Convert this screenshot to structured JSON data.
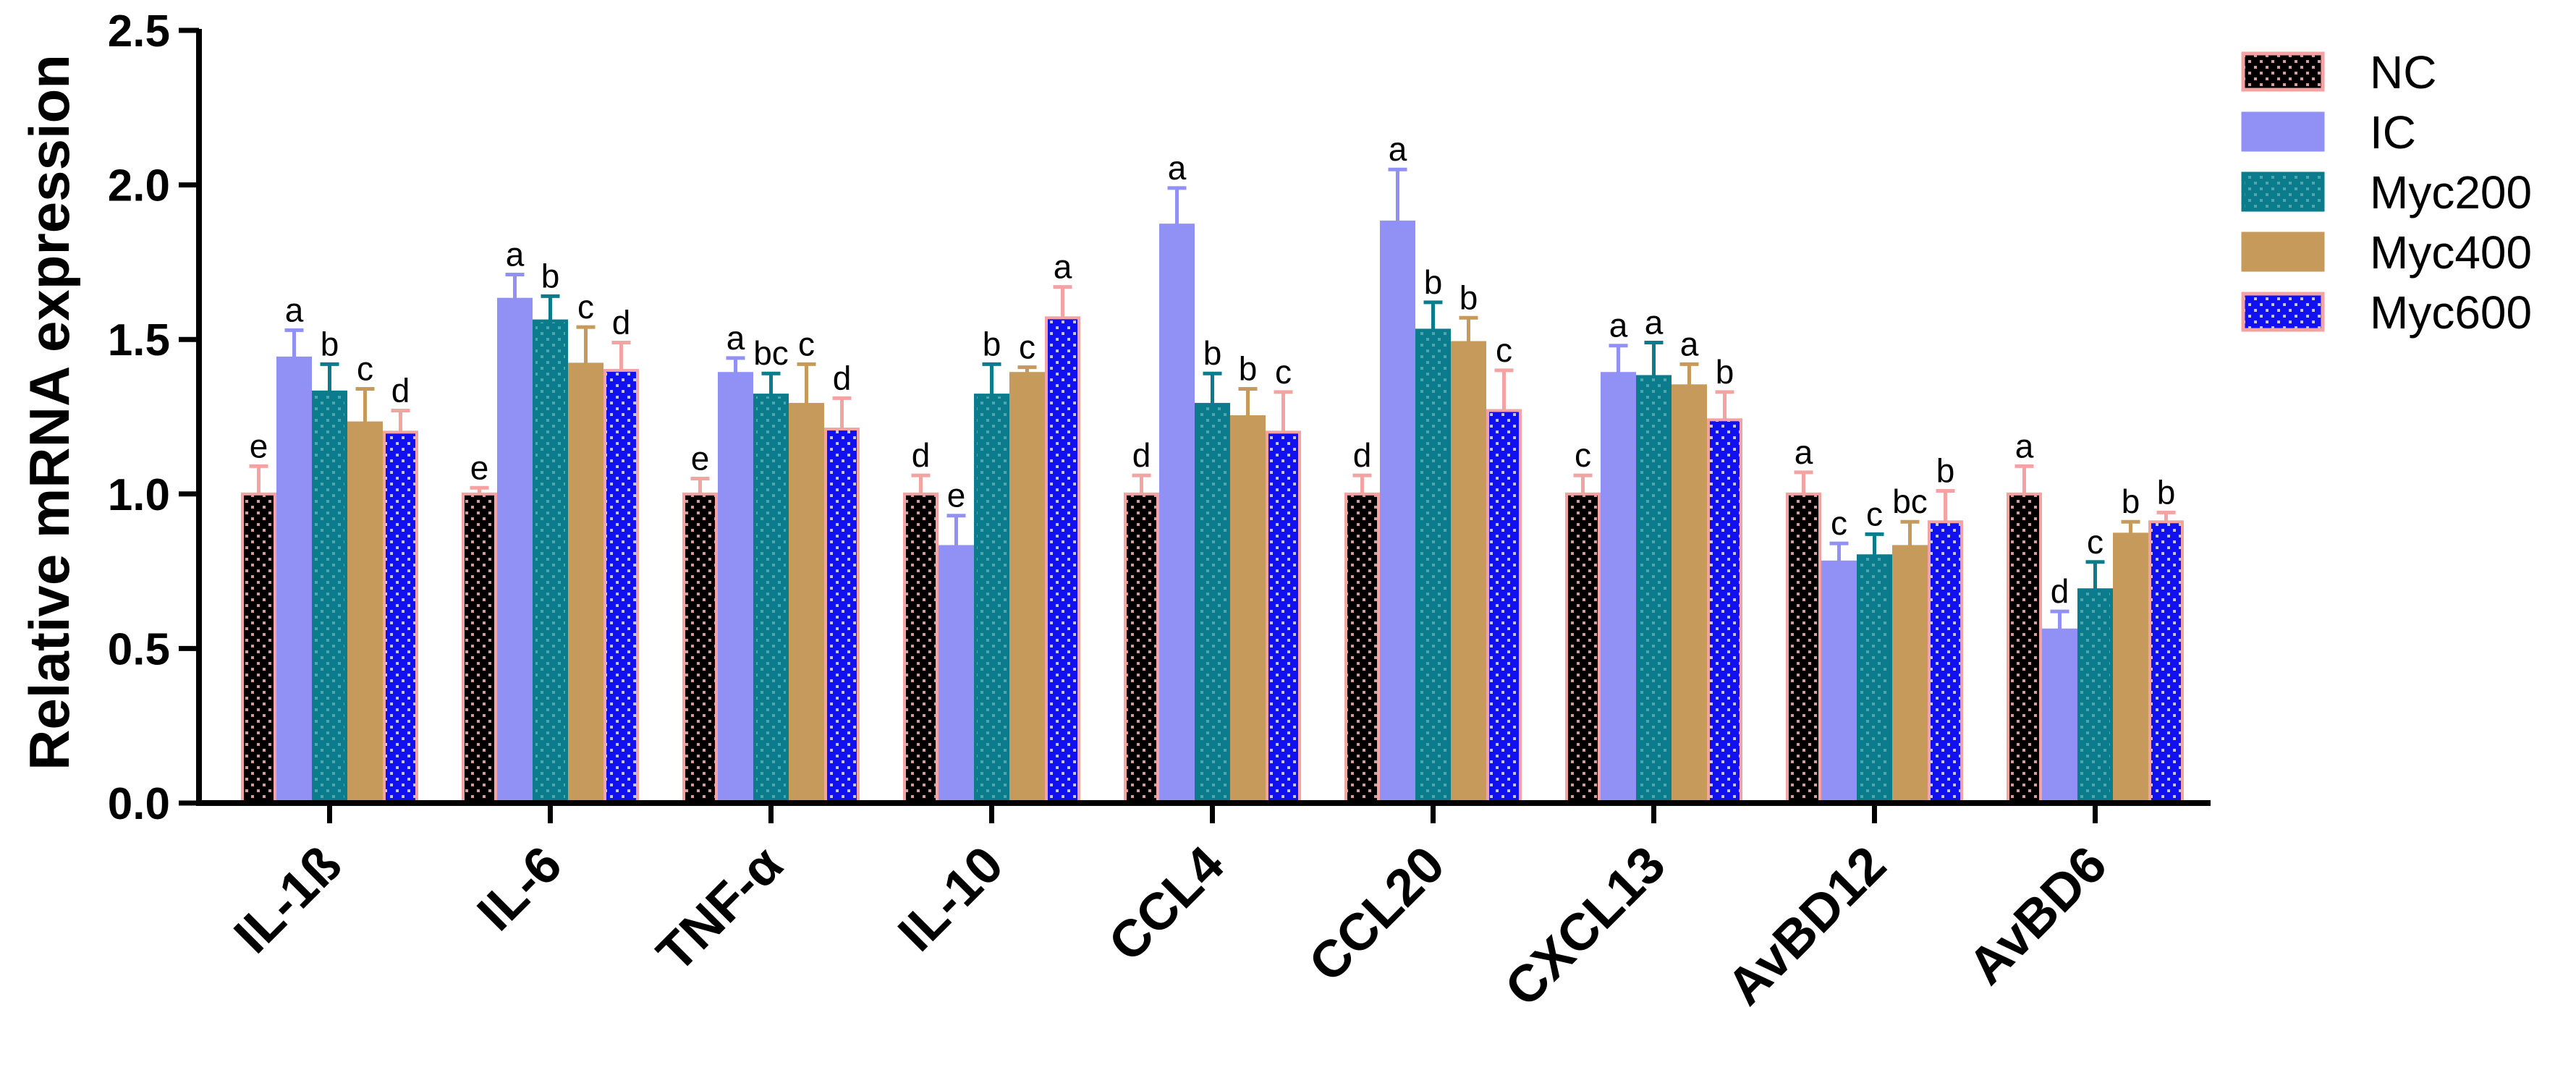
{
  "chart_data": {
    "type": "bar",
    "title": "",
    "xlabel": "",
    "ylabel": "Relative mRNA expression",
    "ylim": [
      0,
      2.5
    ],
    "yticks": [
      "0.0",
      "0.5",
      "1.0",
      "1.5",
      "2.0",
      "2.5"
    ],
    "categories": [
      "IL-1ß",
      "IL-6",
      "TNF-α",
      "IL-10",
      "CCL4",
      "CCL20",
      "CXCL13",
      "AvBD12",
      "AvBD6"
    ],
    "legend_position": "top-right",
    "series": [
      {
        "name": "NC",
        "color": "#000000",
        "border": "#f4a3a3",
        "dot": "#d99a9a",
        "values": [
          1.0,
          1.0,
          1.0,
          1.0,
          1.0,
          1.0,
          1.0,
          1.0,
          1.0
        ],
        "errors": [
          0.09,
          0.02,
          0.05,
          0.06,
          0.06,
          0.06,
          0.06,
          0.07,
          0.09
        ],
        "labels": [
          "e",
          "e",
          "e",
          "d",
          "d",
          "d",
          "c",
          "a",
          "a"
        ]
      },
      {
        "name": "IC",
        "color": "#9191f5",
        "border": "#9191f5",
        "dot": null,
        "values": [
          1.44,
          1.63,
          1.39,
          0.83,
          1.87,
          1.88,
          1.39,
          0.78,
          0.56
        ],
        "errors": [
          0.09,
          0.08,
          0.05,
          0.1,
          0.12,
          0.17,
          0.09,
          0.06,
          0.06
        ],
        "labels": [
          "a",
          "a",
          "a",
          "e",
          "a",
          "a",
          "a",
          "c",
          "d"
        ]
      },
      {
        "name": "Myc200",
        "color": "#0b7c8c",
        "border": "#0b7c8c",
        "dot": "#4fa6b0",
        "values": [
          1.33,
          1.56,
          1.32,
          1.32,
          1.29,
          1.53,
          1.38,
          0.8,
          0.69
        ],
        "errors": [
          0.09,
          0.08,
          0.07,
          0.1,
          0.1,
          0.09,
          0.11,
          0.07,
          0.09
        ],
        "labels": [
          "b",
          "b",
          "bc",
          "b",
          "b",
          "b",
          "a",
          "c",
          "c"
        ]
      },
      {
        "name": "Myc400",
        "color": "#c59a5a",
        "border": "#c59a5a",
        "dot": null,
        "values": [
          1.23,
          1.42,
          1.29,
          1.39,
          1.25,
          1.49,
          1.35,
          0.83,
          0.87
        ],
        "errors": [
          0.11,
          0.12,
          0.13,
          0.02,
          0.09,
          0.08,
          0.07,
          0.08,
          0.04
        ],
        "labels": [
          "c",
          "c",
          "c",
          "c",
          "b",
          "b",
          "a",
          "bc",
          "b"
        ]
      },
      {
        "name": "Myc600",
        "color": "#1010f0",
        "border": "#f4a3a3",
        "dot": "#c8c8ff",
        "values": [
          1.2,
          1.4,
          1.21,
          1.57,
          1.2,
          1.27,
          1.24,
          0.91,
          0.91
        ],
        "errors": [
          0.07,
          0.09,
          0.1,
          0.1,
          0.13,
          0.13,
          0.09,
          0.1,
          0.03
        ],
        "labels": [
          "d",
          "d",
          "d",
          "a",
          "c",
          "c",
          "b",
          "b",
          "b"
        ]
      }
    ]
  }
}
